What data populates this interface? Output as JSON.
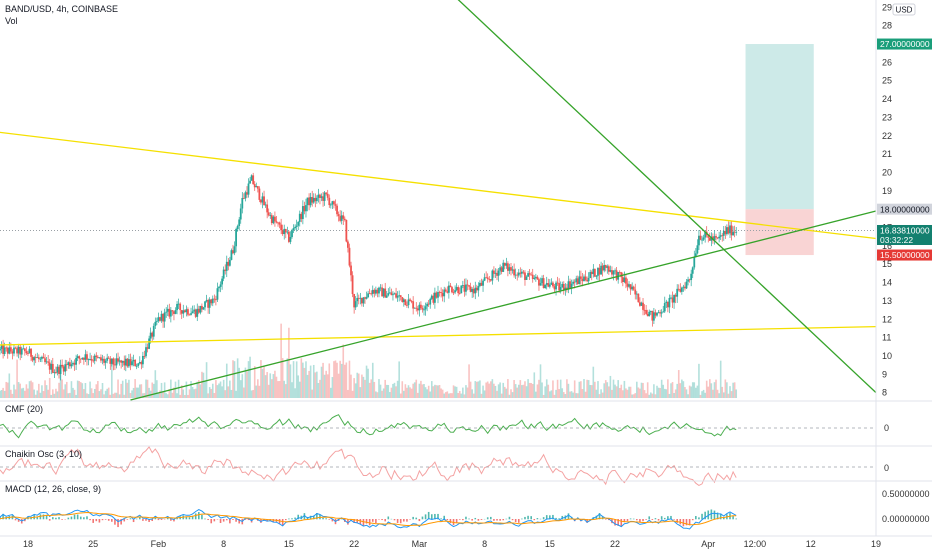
{
  "header": {
    "symbol": "BAND/USD, 4h, COINBASE",
    "volume_label": "Vol"
  },
  "price_scale": {
    "currency_label": "USD",
    "ticks": [
      "8",
      "9",
      "10",
      "11",
      "12",
      "13",
      "14",
      "15",
      "16",
      "17",
      "18",
      "19",
      "20",
      "21",
      "22",
      "23",
      "24",
      "25",
      "26",
      "27",
      "28",
      "29"
    ],
    "take_profit": "27.00000000",
    "entry": "18.00000000",
    "stop_loss": "15.50000000",
    "last_price": "16.83810000",
    "countdown": "03:32:22"
  },
  "time_axis": {
    "ticks": [
      "18",
      "25",
      "Feb",
      "8",
      "15",
      "22",
      "Mar",
      "8",
      "15",
      "22",
      "Apr",
      "12:00",
      "12",
      "19"
    ]
  },
  "panes": {
    "cmf": {
      "label": "CMF (20)",
      "zero": "0"
    },
    "chaikin": {
      "label": "Chaikin Osc (3, 10)",
      "zero": "0"
    },
    "macd": {
      "label": "MACD (12, 26, close, 9)",
      "tick_high": "0.50000000",
      "tick_zero": "0.00000000"
    }
  },
  "colors": {
    "up": "#26a69a",
    "down": "#ef5350",
    "trend_yellow": "#f5e000",
    "trend_green": "#36a32a",
    "cmf_line": "#4caf50",
    "chaikin_line": "#f4a3a3",
    "macd_line": "#2196f3",
    "signal_line": "#ff9800",
    "target_zone": "#b2dfdb",
    "stop_zone": "#f8c9c9"
  },
  "chart_data": {
    "type": "candlestick",
    "title": "BAND/USD, 4h, COINBASE",
    "ylim": [
      7.6,
      29.4
    ],
    "x_start": "2021-01-15",
    "x_end": "2021-04-19",
    "price_path": [
      [
        "2021-01-15",
        10.3
      ],
      [
        "2021-01-18",
        10.2
      ],
      [
        "2021-01-21",
        9.2
      ],
      [
        "2021-01-24",
        10.0
      ],
      [
        "2021-01-27",
        9.6
      ],
      [
        "2021-01-30",
        9.6
      ],
      [
        "2021-02-01",
        12.0
      ],
      [
        "2021-02-03",
        12.6
      ],
      [
        "2021-02-05",
        12.4
      ],
      [
        "2021-02-07",
        13.1
      ],
      [
        "2021-02-09",
        15.8
      ],
      [
        "2021-02-10",
        18.5
      ],
      [
        "2021-02-11",
        19.6
      ],
      [
        "2021-02-13",
        17.6
      ],
      [
        "2021-02-15",
        16.4
      ],
      [
        "2021-02-17",
        18.4
      ],
      [
        "2021-02-19",
        18.7
      ],
      [
        "2021-02-21",
        17.2
      ],
      [
        "2021-02-22",
        12.8
      ],
      [
        "2021-02-24",
        13.6
      ],
      [
        "2021-02-27",
        13.2
      ],
      [
        "2021-03-01",
        12.6
      ],
      [
        "2021-03-04",
        13.7
      ],
      [
        "2021-03-07",
        13.6
      ],
      [
        "2021-03-10",
        14.9
      ],
      [
        "2021-03-13",
        14.2
      ],
      [
        "2021-03-16",
        13.7
      ],
      [
        "2021-03-19",
        14.3
      ],
      [
        "2021-03-21",
        14.9
      ],
      [
        "2021-03-23",
        14.1
      ],
      [
        "2021-03-26",
        12.1
      ],
      [
        "2021-03-28",
        13.0
      ],
      [
        "2021-03-30",
        14.2
      ],
      [
        "2021-03-31",
        16.6
      ],
      [
        "2021-04-02",
        16.3
      ],
      [
        "2021-04-03",
        16.84
      ]
    ],
    "markers": {
      "take_profit": 27.0,
      "entry": 18.0,
      "stop_loss": 15.5,
      "last_price": 16.8381
    },
    "trendlines": [
      {
        "color": "yellow",
        "from": [
          "2021-01-05",
          22.8
        ],
        "to": [
          "2021-04-19",
          16.4
        ]
      },
      {
        "color": "yellow",
        "from": [
          "2021-01-15",
          10.6
        ],
        "to": [
          "2021-04-19",
          11.6
        ]
      },
      {
        "color": "green",
        "from": [
          "2021-01-29",
          7.6
        ],
        "to": [
          "2021-04-19",
          17.9
        ]
      },
      {
        "color": "green",
        "from": [
          "2021-03-05",
          29.5
        ],
        "to": [
          "2021-04-19",
          8.0
        ]
      }
    ],
    "indicators": [
      "CMF (20)",
      "Chaikin Osc (3, 10)",
      "MACD (12, 26, close, 9)"
    ],
    "macd_ticks": [
      0.5,
      0.0
    ]
  }
}
